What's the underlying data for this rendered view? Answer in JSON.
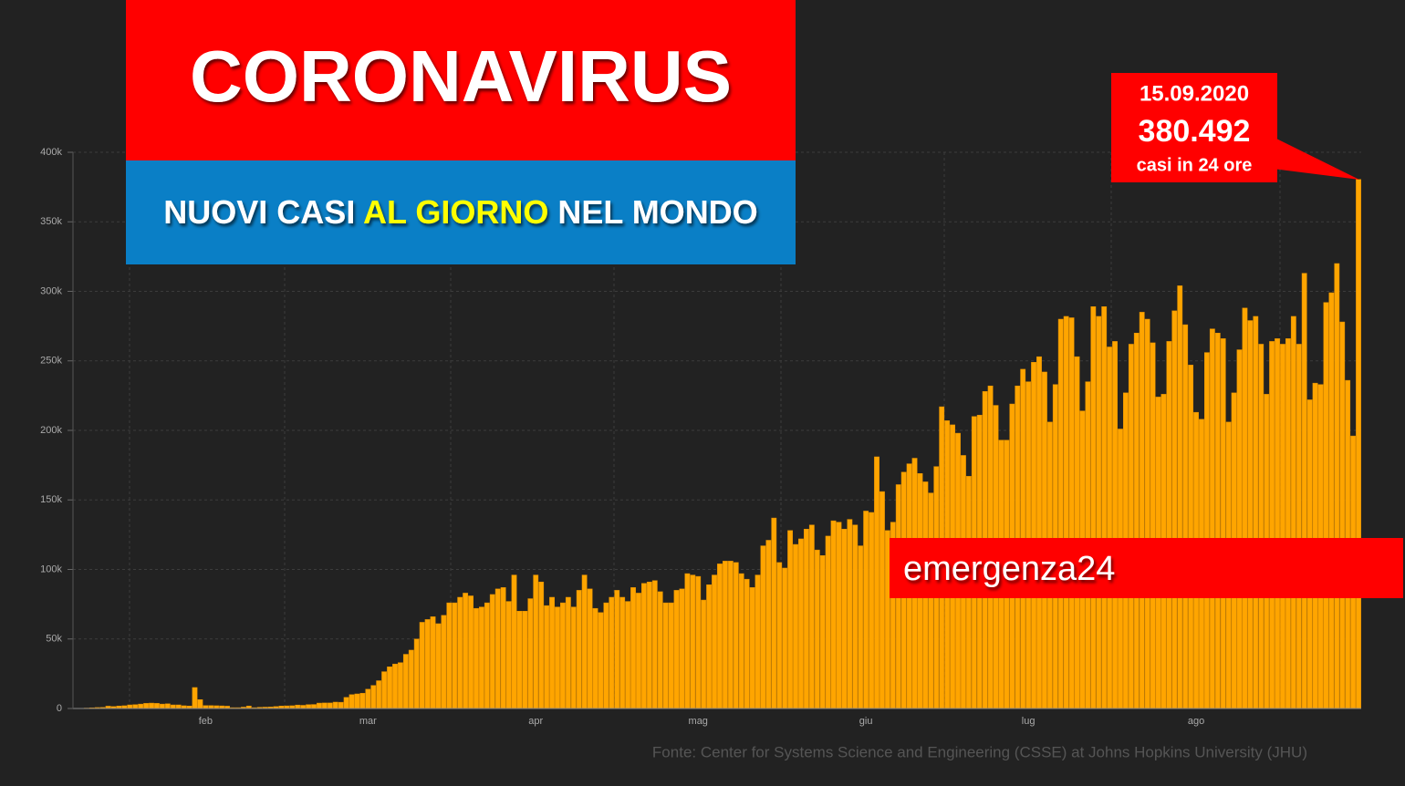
{
  "chart_data": {
    "type": "bar",
    "title": "CORONAVIRUS",
    "subtitle": {
      "part1": "NUOVI CASI ",
      "highlight": "AL GIORNO",
      "part2": " NEL MONDO"
    },
    "annotation": {
      "date": "15.09.2020",
      "label": "380.492",
      "note": "casi in 24 ore"
    },
    "brand": "emergenza24",
    "source": "Fonte: Center for Systems Science and Engineering (CSSE) at Johns Hopkins University (JHU)",
    "color": "#ffa500",
    "grid": true,
    "ylim": [
      0,
      400000
    ],
    "yticks": [
      0,
      {
        "value": 50000,
        "label": "50k"
      },
      {
        "value": 100000,
        "label": "100k"
      },
      {
        "value": 150000,
        "label": "150k"
      },
      {
        "value": 200000,
        "label": "200k"
      },
      {
        "value": 250000,
        "label": "250k"
      },
      {
        "value": 300000,
        "label": "300k"
      },
      {
        "value": 350000,
        "label": "350k"
      },
      {
        "value": 400000,
        "label": "400k"
      }
    ],
    "categories": [
      null,
      null,
      null,
      null,
      null,
      null,
      null,
      null,
      null,
      null,
      null,
      null,
      null,
      null,
      null,
      null,
      null,
      null,
      null,
      null,
      null,
      null,
      null,
      null,
      "feb",
      null,
      null,
      null,
      null,
      null,
      null,
      null,
      null,
      null,
      null,
      null,
      null,
      null,
      null,
      null,
      null,
      null,
      null,
      null,
      null,
      null,
      null,
      null,
      null,
      null,
      null,
      null,
      null,
      null,
      "mar",
      null,
      null,
      null,
      null,
      null,
      null,
      null,
      null,
      null,
      null,
      null,
      null,
      null,
      null,
      null,
      null,
      null,
      null,
      null,
      null,
      null,
      null,
      null,
      null,
      null,
      null,
      null,
      null,
      null,
      null,
      "apr",
      null,
      null,
      null,
      null,
      null,
      null,
      null,
      null,
      null,
      null,
      null,
      null,
      null,
      null,
      null,
      null,
      null,
      null,
      null,
      null,
      null,
      null,
      null,
      null,
      null,
      null,
      null,
      null,
      null,
      "mag",
      null,
      null,
      null,
      null,
      null,
      null,
      null,
      null,
      null,
      null,
      null,
      null,
      null,
      null,
      null,
      null,
      null,
      null,
      null,
      null,
      null,
      null,
      null,
      null,
      null,
      null,
      null,
      null,
      null,
      null,
      "giu",
      null,
      null,
      null,
      null,
      null,
      null,
      null,
      null,
      null,
      null,
      null,
      null,
      null,
      null,
      null,
      null,
      null,
      null,
      null,
      null,
      null,
      null,
      null,
      null,
      null,
      null,
      null,
      null,
      null,
      "lug",
      null,
      null,
      null,
      null,
      null,
      null,
      null,
      null,
      null,
      null,
      null,
      null,
      null,
      null,
      null,
      null,
      null,
      null,
      null,
      null,
      null,
      null,
      null,
      null,
      null,
      null,
      null,
      null,
      null,
      null,
      "ago",
      null,
      null,
      null,
      null,
      null,
      null,
      null,
      null,
      null,
      null,
      null,
      null,
      null,
      null,
      null,
      null,
      null,
      null,
      null,
      null,
      null,
      null,
      null,
      null,
      null,
      null,
      null,
      null,
      null,
      null
    ],
    "values": [
      0,
      100,
      300,
      500,
      700,
      800,
      1700,
      1400,
      1800,
      2000,
      2600,
      2800,
      3200,
      3700,
      3900,
      3700,
      3200,
      3400,
      2600,
      2600,
      2000,
      1800,
      15100,
      6400,
      2100,
      2100,
      2000,
      1900,
      1700,
      600,
      600,
      1000,
      1800,
      600,
      900,
      1000,
      1100,
      1400,
      1800,
      1900,
      2000,
      2500,
      2300,
      2800,
      2900,
      3900,
      4000,
      4000,
      4600,
      4500,
      8000,
      10000,
      10500,
      11000,
      13900,
      16600,
      20000,
      26500,
      30000,
      32000,
      33000,
      39000,
      42000,
      50000,
      62000,
      64000,
      66000,
      61000,
      67000,
      76000,
      76000,
      80000,
      83000,
      81000,
      72000,
      73000,
      76000,
      82000,
      86000,
      87000,
      77000,
      96000,
      70000,
      70000,
      79000,
      96000,
      91000,
      74000,
      80000,
      73000,
      76000,
      80000,
      73000,
      85000,
      96000,
      86000,
      72000,
      69000,
      76000,
      80000,
      85000,
      80000,
      77000,
      87000,
      83000,
      90000,
      91000,
      92000,
      84000,
      76000,
      76000,
      85000,
      86000,
      97000,
      96000,
      95000,
      78000,
      89000,
      96000,
      104000,
      106000,
      106000,
      105000,
      97000,
      93000,
      87000,
      96000,
      117000,
      121000,
      137000,
      105000,
      101000,
      128000,
      118000,
      122000,
      129000,
      132000,
      114000,
      110000,
      124000,
      135000,
      134000,
      129000,
      136000,
      132000,
      117000,
      142000,
      141000,
      181000,
      156000,
      128000,
      134000,
      161000,
      170000,
      176000,
      180000,
      169000,
      163000,
      155000,
      174000,
      217000,
      207000,
      204000,
      198000,
      182000,
      167000,
      210000,
      211000,
      228000,
      232000,
      218000,
      193000,
      193000,
      219000,
      232000,
      244000,
      235000,
      249000,
      253000,
      242000,
      206000,
      233000,
      280000,
      282000,
      281000,
      253000,
      214000,
      235000,
      289000,
      282000,
      289000,
      260000,
      264000,
      201000,
      227000,
      262000,
      270000,
      285000,
      280000,
      263000,
      224000,
      226000,
      264000,
      286000,
      304000,
      276000,
      247000,
      213000,
      208000,
      256000,
      273000,
      270000,
      266000,
      206000,
      227000,
      258000,
      288000,
      279000,
      282000,
      262000,
      226000,
      264000,
      266000,
      262000,
      266000,
      282000,
      262000,
      313000,
      222000,
      234000,
      233000,
      292000,
      299000,
      320000,
      278000,
      236000,
      196000,
      380492
    ]
  }
}
